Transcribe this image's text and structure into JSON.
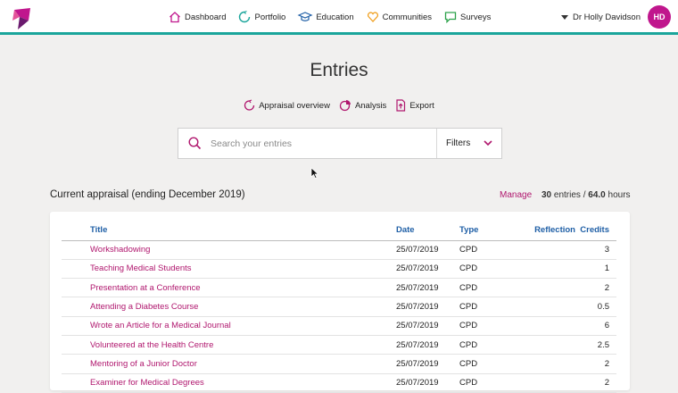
{
  "nav": {
    "items": [
      {
        "label": "Dashboard",
        "icon": "home-icon"
      },
      {
        "label": "Portfolio",
        "icon": "portfolio-icon"
      },
      {
        "label": "Education",
        "icon": "graduation-cap-icon"
      },
      {
        "label": "Communities",
        "icon": "heart-icon"
      },
      {
        "label": "Surveys",
        "icon": "chat-bubble-icon"
      }
    ]
  },
  "user": {
    "name": "Dr Holly Davidson",
    "initials": "HD"
  },
  "page": {
    "title": "Entries"
  },
  "actions": [
    {
      "label": "Appraisal overview",
      "icon": "appraisal-icon"
    },
    {
      "label": "Analysis",
      "icon": "pie-chart-icon"
    },
    {
      "label": "Export",
      "icon": "export-icon"
    }
  ],
  "search": {
    "placeholder": "Search your entries",
    "value": "",
    "filters_label": "Filters"
  },
  "appraisal": {
    "label": "Current appraisal (ending December 2019)",
    "manage_label": "Manage",
    "entries_count": "30",
    "entries_label": "entries /",
    "hours": "64.0",
    "hours_label": "hours"
  },
  "table": {
    "headers": {
      "title": "Title",
      "date": "Date",
      "type": "Type",
      "reflection": "Reflection",
      "credits": "Credits"
    },
    "rows": [
      {
        "title": "Workshadowing",
        "date": "25/07/2019",
        "type": "CPD",
        "reflection": "",
        "credits": "3"
      },
      {
        "title": "Teaching Medical Students",
        "date": "25/07/2019",
        "type": "CPD",
        "reflection": "",
        "credits": "1"
      },
      {
        "title": "Presentation at a Conference",
        "date": "25/07/2019",
        "type": "CPD",
        "reflection": "",
        "credits": "2"
      },
      {
        "title": "Attending a Diabetes Course",
        "date": "25/07/2019",
        "type": "CPD",
        "reflection": "",
        "credits": "0.5"
      },
      {
        "title": "Wrote an Article for a Medical Journal",
        "date": "25/07/2019",
        "type": "CPD",
        "reflection": "",
        "credits": "6"
      },
      {
        "title": "Volunteered at the Health Centre",
        "date": "25/07/2019",
        "type": "CPD",
        "reflection": "",
        "credits": "2.5"
      },
      {
        "title": "Mentoring of a Junior Doctor",
        "date": "25/07/2019",
        "type": "CPD",
        "reflection": "",
        "credits": "2"
      },
      {
        "title": "Examiner for Medical Degrees",
        "date": "25/07/2019",
        "type": "CPD",
        "reflection": "",
        "credits": "2"
      }
    ]
  },
  "colors": {
    "accent": "#b0176e",
    "teal": "#1aa59b",
    "link_blue": "#1f5fa6",
    "avatar": "#c0168d"
  }
}
